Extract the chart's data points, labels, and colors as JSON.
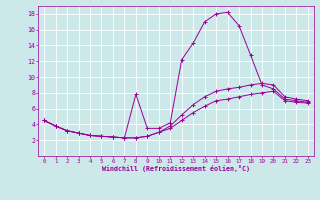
{
  "xlabel": "Windchill (Refroidissement éolien,°C)",
  "bg_color": "#cce8e8",
  "grid_color": "#ffffff",
  "line_color": "#990099",
  "xlim": [
    -0.5,
    23.5
  ],
  "ylim": [
    0,
    19
  ],
  "xticks": [
    0,
    1,
    2,
    3,
    4,
    5,
    6,
    7,
    8,
    9,
    10,
    11,
    12,
    13,
    14,
    15,
    16,
    17,
    18,
    19,
    20,
    21,
    22,
    23
  ],
  "yticks": [
    2,
    4,
    6,
    8,
    10,
    12,
    14,
    16,
    18
  ],
  "series1": [
    [
      0,
      4.5
    ],
    [
      1,
      3.8
    ],
    [
      2,
      3.2
    ],
    [
      3,
      2.9
    ],
    [
      4,
      2.6
    ],
    [
      5,
      2.5
    ],
    [
      6,
      2.4
    ],
    [
      7,
      2.3
    ],
    [
      8,
      7.8
    ],
    [
      9,
      3.5
    ],
    [
      10,
      3.5
    ],
    [
      11,
      4.2
    ],
    [
      12,
      12.2
    ],
    [
      13,
      14.3
    ],
    [
      14,
      17.0
    ],
    [
      15,
      18.0
    ],
    [
      16,
      18.2
    ],
    [
      17,
      16.5
    ],
    [
      18,
      12.8
    ],
    [
      19,
      9.0
    ],
    [
      20,
      8.5
    ],
    [
      21,
      7.2
    ],
    [
      22,
      7.0
    ],
    [
      23,
      6.8
    ]
  ],
  "series2": [
    [
      0,
      4.5
    ],
    [
      1,
      3.8
    ],
    [
      2,
      3.2
    ],
    [
      3,
      2.9
    ],
    [
      4,
      2.6
    ],
    [
      5,
      2.5
    ],
    [
      6,
      2.4
    ],
    [
      7,
      2.3
    ],
    [
      8,
      2.3
    ],
    [
      9,
      2.5
    ],
    [
      10,
      3.0
    ],
    [
      11,
      3.8
    ],
    [
      12,
      5.2
    ],
    [
      13,
      6.5
    ],
    [
      14,
      7.5
    ],
    [
      15,
      8.2
    ],
    [
      16,
      8.5
    ],
    [
      17,
      8.7
    ],
    [
      18,
      9.0
    ],
    [
      19,
      9.2
    ],
    [
      20,
      9.0
    ],
    [
      21,
      7.5
    ],
    [
      22,
      7.2
    ],
    [
      23,
      7.0
    ]
  ],
  "series3": [
    [
      0,
      4.5
    ],
    [
      1,
      3.8
    ],
    [
      2,
      3.2
    ],
    [
      3,
      2.9
    ],
    [
      4,
      2.6
    ],
    [
      5,
      2.5
    ],
    [
      6,
      2.4
    ],
    [
      7,
      2.3
    ],
    [
      8,
      2.3
    ],
    [
      9,
      2.5
    ],
    [
      10,
      3.0
    ],
    [
      11,
      3.5
    ],
    [
      12,
      4.5
    ],
    [
      13,
      5.5
    ],
    [
      14,
      6.3
    ],
    [
      15,
      7.0
    ],
    [
      16,
      7.2
    ],
    [
      17,
      7.5
    ],
    [
      18,
      7.8
    ],
    [
      19,
      8.0
    ],
    [
      20,
      8.2
    ],
    [
      21,
      7.0
    ],
    [
      22,
      6.8
    ],
    [
      23,
      6.7
    ]
  ]
}
